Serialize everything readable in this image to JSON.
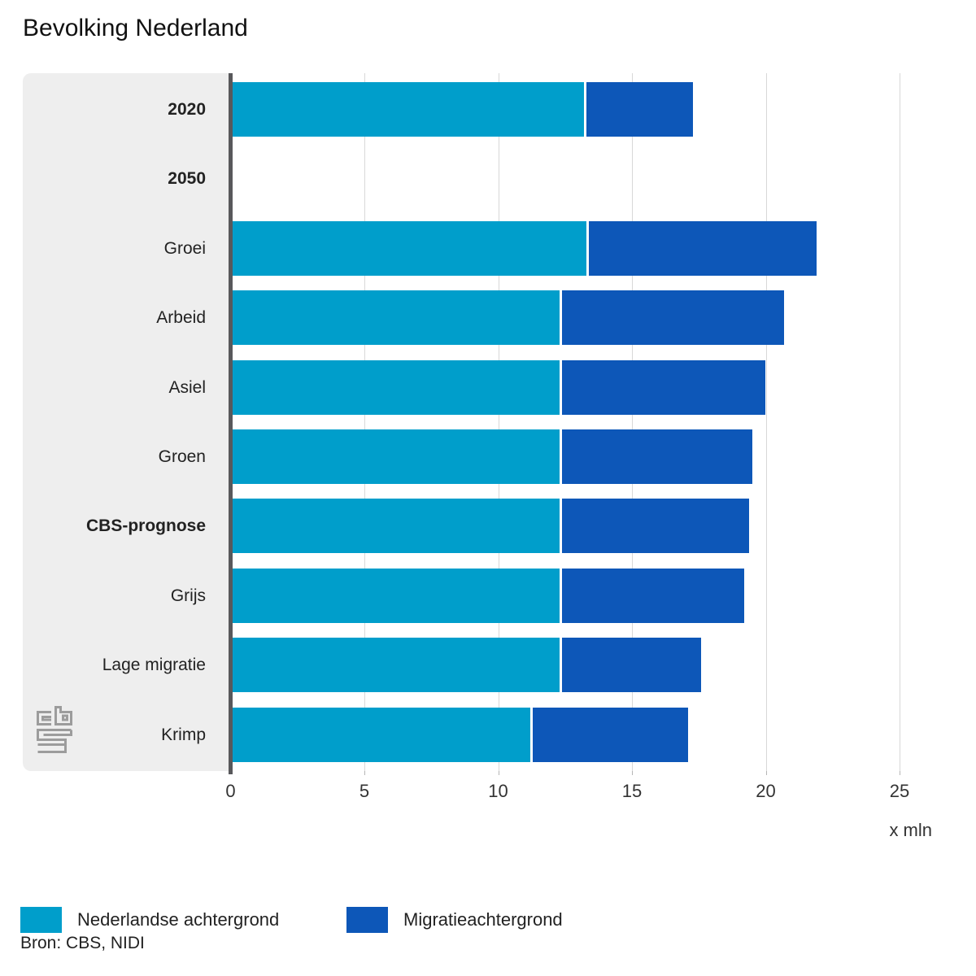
{
  "title": "Bevolking Nederland",
  "source": "Bron: CBS, NIDI",
  "chart_data": {
    "type": "bar",
    "orientation": "horizontal",
    "stacked": true,
    "title": "Bevolking Nederland",
    "unit": "x mln",
    "x_ticks": [
      0,
      5,
      10,
      15,
      20,
      25
    ],
    "xlim": [
      0,
      27
    ],
    "grid": true,
    "legend_position": "bottom",
    "categories": [
      "2020",
      "2050",
      "Groei",
      "Arbeid",
      "Asiel",
      "Groen",
      "CBS-prognose",
      "Grijs",
      "Lage migratie",
      "Krimp"
    ],
    "bold_categories": [
      "2020",
      "2050",
      "CBS-prognose"
    ],
    "series": [
      {
        "name": "Nederlandse achtergrond",
        "color": "#009ecb",
        "values": [
          13.2,
          null,
          13.3,
          12.3,
          12.3,
          12.3,
          12.3,
          12.3,
          12.3,
          11.2
        ]
      },
      {
        "name": "Migratieachtergrond",
        "color": "#0d57b8",
        "values": [
          4.0,
          null,
          8.5,
          8.3,
          7.6,
          7.1,
          7.0,
          6.8,
          5.2,
          5.8
        ]
      }
    ]
  },
  "colors": {
    "panel_bg": "#eeeeee",
    "axis_line": "#58585b",
    "gridline": "#d8d8d8",
    "logo_gray": "#9c9c9c"
  }
}
